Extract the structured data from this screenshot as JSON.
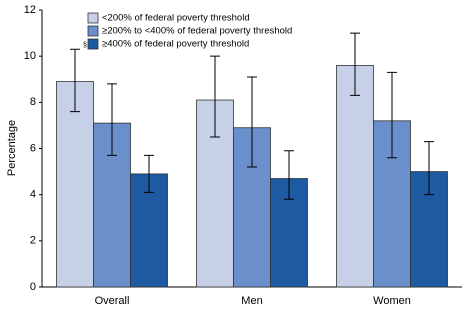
{
  "chart_data": {
    "type": "bar",
    "y_label": "Percentage",
    "categories": [
      "Overall",
      "Men",
      "Women"
    ],
    "annotation": "§",
    "series": [
      {
        "name": "<200% of federal poverty threshold",
        "color": "#c6d1e8",
        "values": [
          8.9,
          8.1,
          9.6
        ],
        "ci_lower": [
          7.6,
          6.5,
          8.3
        ],
        "ci_upper": [
          10.3,
          10.0,
          11.0
        ]
      },
      {
        "name": "≥200% to <400% of federal poverty threshold",
        "color": "#6a8fcb",
        "values": [
          7.1,
          6.9,
          7.2
        ],
        "ci_lower": [
          5.7,
          5.2,
          5.6
        ],
        "ci_upper": [
          8.8,
          9.1,
          9.3
        ]
      },
      {
        "name": "≥400% of federal poverty threshold",
        "color": "#1d5aa1",
        "values": [
          4.9,
          4.7,
          5.0
        ],
        "ci_lower": [
          4.1,
          3.8,
          4.0
        ],
        "ci_upper": [
          5.7,
          5.9,
          6.3
        ]
      }
    ],
    "ylim": [
      0,
      12
    ],
    "yticks": [
      0,
      2,
      4,
      6,
      8,
      10,
      12
    ],
    "grid": false
  }
}
